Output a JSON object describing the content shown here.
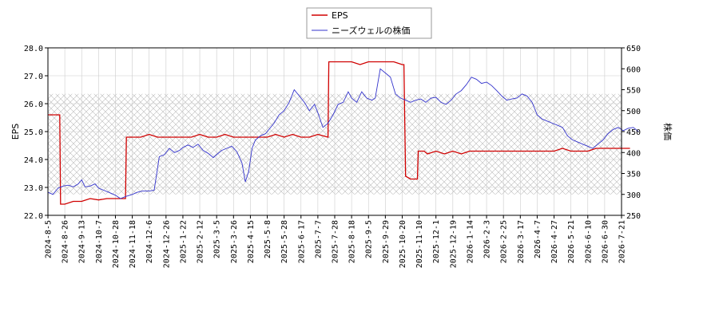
{
  "chart_data": {
    "type": "line",
    "legend_position": "top-center",
    "grid": true,
    "colors": {
      "eps": "#d00000",
      "price": "#3333cc",
      "grid": "#cccccc",
      "hatch_band": "#bbbbbb"
    },
    "x_ticks": [
      "2024-8-5",
      "2024-8-26",
      "2024-9-13",
      "2024-10-7",
      "2024-10-28",
      "2024-11-18",
      "2024-12-6",
      "2024-12-26",
      "2025-1-22",
      "2025-2-12",
      "2025-3-5",
      "2025-3-26",
      "2025-4-15",
      "2025-5-8",
      "2025-5-28",
      "2025-6-17",
      "2025-7-7",
      "2025-7-28",
      "2025-8-18",
      "2025-9-5",
      "2025-9-29",
      "2025-10-20",
      "2025-11-10",
      "2025-12-1",
      "2025-12-19",
      "2026-1-14",
      "2026-2-3",
      "2026-2-25",
      "2026-3-17",
      "2026-4-7",
      "2026-4-27",
      "2026-5-21",
      "2026-6-10",
      "2026-6-30",
      "2026-7-21"
    ],
    "y_left": {
      "label": "EPS",
      "ylim": [
        22.0,
        28.0
      ],
      "ticks": [
        "22.0",
        "23.0",
        "24.0",
        "25.0",
        "26.0",
        "27.0",
        "28.0"
      ]
    },
    "y_right": {
      "label": "株価",
      "ylim": [
        250,
        650
      ],
      "ticks": [
        "250",
        "300",
        "350",
        "400",
        "450",
        "500",
        "550",
        "600",
        "650"
      ]
    },
    "hatch_band": {
      "axis": "right",
      "from": 300,
      "to": 540
    },
    "series": [
      {
        "name": "EPS",
        "axis": "left",
        "points": [
          [
            0,
            25.6
          ],
          [
            0.3,
            25.6
          ],
          [
            0.7,
            25.6
          ],
          [
            0.75,
            22.4
          ],
          [
            1.0,
            22.4
          ],
          [
            1.5,
            22.5
          ],
          [
            2.0,
            22.5
          ],
          [
            2.5,
            22.6
          ],
          [
            3.0,
            22.55
          ],
          [
            3.5,
            22.6
          ],
          [
            4.0,
            22.6
          ],
          [
            4.6,
            22.6
          ],
          [
            4.65,
            24.8
          ],
          [
            5.0,
            24.8
          ],
          [
            5.5,
            24.8
          ],
          [
            6.0,
            24.9
          ],
          [
            6.5,
            24.8
          ],
          [
            7.0,
            24.8
          ],
          [
            7.5,
            24.8
          ],
          [
            8.0,
            24.8
          ],
          [
            8.5,
            24.8
          ],
          [
            9.0,
            24.9
          ],
          [
            9.5,
            24.8
          ],
          [
            10.0,
            24.8
          ],
          [
            10.5,
            24.9
          ],
          [
            11.0,
            24.8
          ],
          [
            11.5,
            24.8
          ],
          [
            12.0,
            24.8
          ],
          [
            12.5,
            24.8
          ],
          [
            13.0,
            24.8
          ],
          [
            13.5,
            24.9
          ],
          [
            14.0,
            24.8
          ],
          [
            14.5,
            24.9
          ],
          [
            15.0,
            24.8
          ],
          [
            15.5,
            24.8
          ],
          [
            16.0,
            24.9
          ],
          [
            16.6,
            24.8
          ],
          [
            16.65,
            27.5
          ],
          [
            17.0,
            27.5
          ],
          [
            17.5,
            27.5
          ],
          [
            18.0,
            27.5
          ],
          [
            18.5,
            27.4
          ],
          [
            19.0,
            27.5
          ],
          [
            19.5,
            27.5
          ],
          [
            20.0,
            27.5
          ],
          [
            20.5,
            27.5
          ],
          [
            21.0,
            27.4
          ],
          [
            21.1,
            27.4
          ],
          [
            21.2,
            23.4
          ],
          [
            21.5,
            23.3
          ],
          [
            21.9,
            23.3
          ],
          [
            21.95,
            24.3
          ],
          [
            22.3,
            24.3
          ],
          [
            22.5,
            24.2
          ],
          [
            23.0,
            24.3
          ],
          [
            23.5,
            24.2
          ],
          [
            24.0,
            24.3
          ],
          [
            24.5,
            24.2
          ],
          [
            25.0,
            24.3
          ],
          [
            25.5,
            24.3
          ],
          [
            26.0,
            24.3
          ],
          [
            26.5,
            24.3
          ],
          [
            27.0,
            24.3
          ],
          [
            27.5,
            24.3
          ],
          [
            28.0,
            24.3
          ],
          [
            28.5,
            24.3
          ],
          [
            29.0,
            24.3
          ],
          [
            29.5,
            24.3
          ],
          [
            30.0,
            24.3
          ],
          [
            30.5,
            24.4
          ],
          [
            31.0,
            24.3
          ],
          [
            31.5,
            24.3
          ],
          [
            32.0,
            24.3
          ],
          [
            32.5,
            24.4
          ],
          [
            33.0,
            24.4
          ],
          [
            33.5,
            24.4
          ],
          [
            34.0,
            24.4
          ],
          [
            34.5,
            24.4
          ]
        ]
      },
      {
        "name": "ニーズウェルの株価",
        "axis": "right",
        "points": [
          [
            0,
            305
          ],
          [
            0.3,
            300
          ],
          [
            0.6,
            315
          ],
          [
            0.9,
            320
          ],
          [
            1.2,
            322
          ],
          [
            1.5,
            318
          ],
          [
            1.8,
            325
          ],
          [
            2.0,
            335
          ],
          [
            2.2,
            318
          ],
          [
            2.5,
            320
          ],
          [
            2.8,
            325
          ],
          [
            3.0,
            315
          ],
          [
            3.3,
            310
          ],
          [
            3.6,
            305
          ],
          [
            4.0,
            298
          ],
          [
            4.3,
            290
          ],
          [
            4.6,
            295
          ],
          [
            5.0,
            300
          ],
          [
            5.3,
            305
          ],
          [
            5.6,
            308
          ],
          [
            6.0,
            308
          ],
          [
            6.3,
            310
          ],
          [
            6.6,
            390
          ],
          [
            6.9,
            395
          ],
          [
            7.2,
            410
          ],
          [
            7.5,
            400
          ],
          [
            7.8,
            405
          ],
          [
            8.0,
            412
          ],
          [
            8.3,
            418
          ],
          [
            8.6,
            412
          ],
          [
            8.9,
            420
          ],
          [
            9.2,
            405
          ],
          [
            9.5,
            398
          ],
          [
            9.8,
            388
          ],
          [
            10.0,
            395
          ],
          [
            10.3,
            405
          ],
          [
            10.6,
            410
          ],
          [
            10.9,
            415
          ],
          [
            11.2,
            402
          ],
          [
            11.5,
            375
          ],
          [
            11.7,
            330
          ],
          [
            11.9,
            355
          ],
          [
            12.1,
            410
          ],
          [
            12.3,
            430
          ],
          [
            12.6,
            440
          ],
          [
            12.9,
            445
          ],
          [
            13.1,
            455
          ],
          [
            13.4,
            470
          ],
          [
            13.7,
            490
          ],
          [
            14.0,
            500
          ],
          [
            14.3,
            520
          ],
          [
            14.6,
            550
          ],
          [
            14.9,
            535
          ],
          [
            15.2,
            520
          ],
          [
            15.5,
            500
          ],
          [
            15.8,
            515
          ],
          [
            16.0,
            495
          ],
          [
            16.3,
            460
          ],
          [
            16.6,
            470
          ],
          [
            16.9,
            490
          ],
          [
            17.2,
            515
          ],
          [
            17.5,
            520
          ],
          [
            17.8,
            545
          ],
          [
            18.0,
            530
          ],
          [
            18.3,
            520
          ],
          [
            18.6,
            545
          ],
          [
            18.9,
            530
          ],
          [
            19.2,
            525
          ],
          [
            19.4,
            530
          ],
          [
            19.7,
            600
          ],
          [
            20.0,
            590
          ],
          [
            20.3,
            580
          ],
          [
            20.6,
            540
          ],
          [
            20.9,
            530
          ],
          [
            21.2,
            525
          ],
          [
            21.5,
            520
          ],
          [
            21.8,
            525
          ],
          [
            22.1,
            528
          ],
          [
            22.4,
            520
          ],
          [
            22.7,
            530
          ],
          [
            23.0,
            532
          ],
          [
            23.3,
            520
          ],
          [
            23.6,
            515
          ],
          [
            23.9,
            525
          ],
          [
            24.2,
            540
          ],
          [
            24.5,
            548
          ],
          [
            24.8,
            562
          ],
          [
            25.1,
            580
          ],
          [
            25.4,
            575
          ],
          [
            25.7,
            565
          ],
          [
            26.0,
            568
          ],
          [
            26.3,
            560
          ],
          [
            26.6,
            548
          ],
          [
            26.9,
            535
          ],
          [
            27.2,
            525
          ],
          [
            27.5,
            528
          ],
          [
            27.8,
            530
          ],
          [
            28.1,
            540
          ],
          [
            28.4,
            535
          ],
          [
            28.7,
            520
          ],
          [
            29.0,
            490
          ],
          [
            29.3,
            480
          ],
          [
            29.6,
            475
          ],
          [
            29.9,
            470
          ],
          [
            30.2,
            465
          ],
          [
            30.5,
            460
          ],
          [
            30.8,
            440
          ],
          [
            31.1,
            430
          ],
          [
            31.4,
            425
          ],
          [
            31.7,
            420
          ],
          [
            32.0,
            415
          ],
          [
            32.3,
            410
          ],
          [
            32.6,
            420
          ],
          [
            32.9,
            430
          ],
          [
            33.2,
            445
          ],
          [
            33.5,
            455
          ],
          [
            33.8,
            460
          ],
          [
            34.1,
            452
          ],
          [
            34.4,
            458
          ],
          [
            34.7,
            460
          ],
          [
            35.0,
            450
          ]
        ]
      }
    ]
  }
}
